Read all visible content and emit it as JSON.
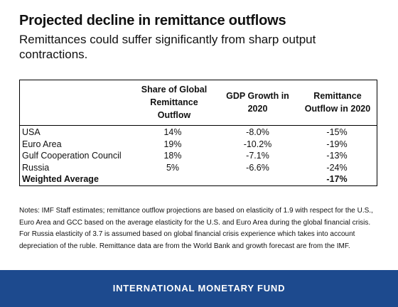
{
  "header": {
    "title": "Projected decline in remittance outflows",
    "subtitle": "Remittances could suffer significantly from sharp output contractions."
  },
  "table": {
    "columns": [
      "Share of Global Remittance Outflow",
      "GDP Growth in 2020",
      "Remittance Outflow in 2020"
    ],
    "rows": [
      [
        "USA",
        "14%",
        "-8.0%",
        "-15%"
      ],
      [
        "Euro Area",
        "19%",
        "-10.2%",
        "-19%"
      ],
      [
        "Gulf Cooperation Council",
        "18%",
        "-7.1%",
        "-13%"
      ],
      [
        "Russia",
        "5%",
        "-6.6%",
        "-24%"
      ]
    ],
    "summary": {
      "label": "Weighted Average",
      "value": "-17%"
    }
  },
  "notes": "Notes: IMF Staff estimates; remittance outflow projections are based on elasticity of 1.9 with respect for the U.S., Euro Area and GCC based on the average elasticity for the U.S. and Euro Area during the global financial crisis. For Russia elasticity of 3.7 is assumed based on global financial crisis experience which takes into account depreciation of the ruble. Remittance data are from the World Bank and growth forecast are from the IMF.",
  "footer": "INTERNATIONAL MONETARY FUND"
}
